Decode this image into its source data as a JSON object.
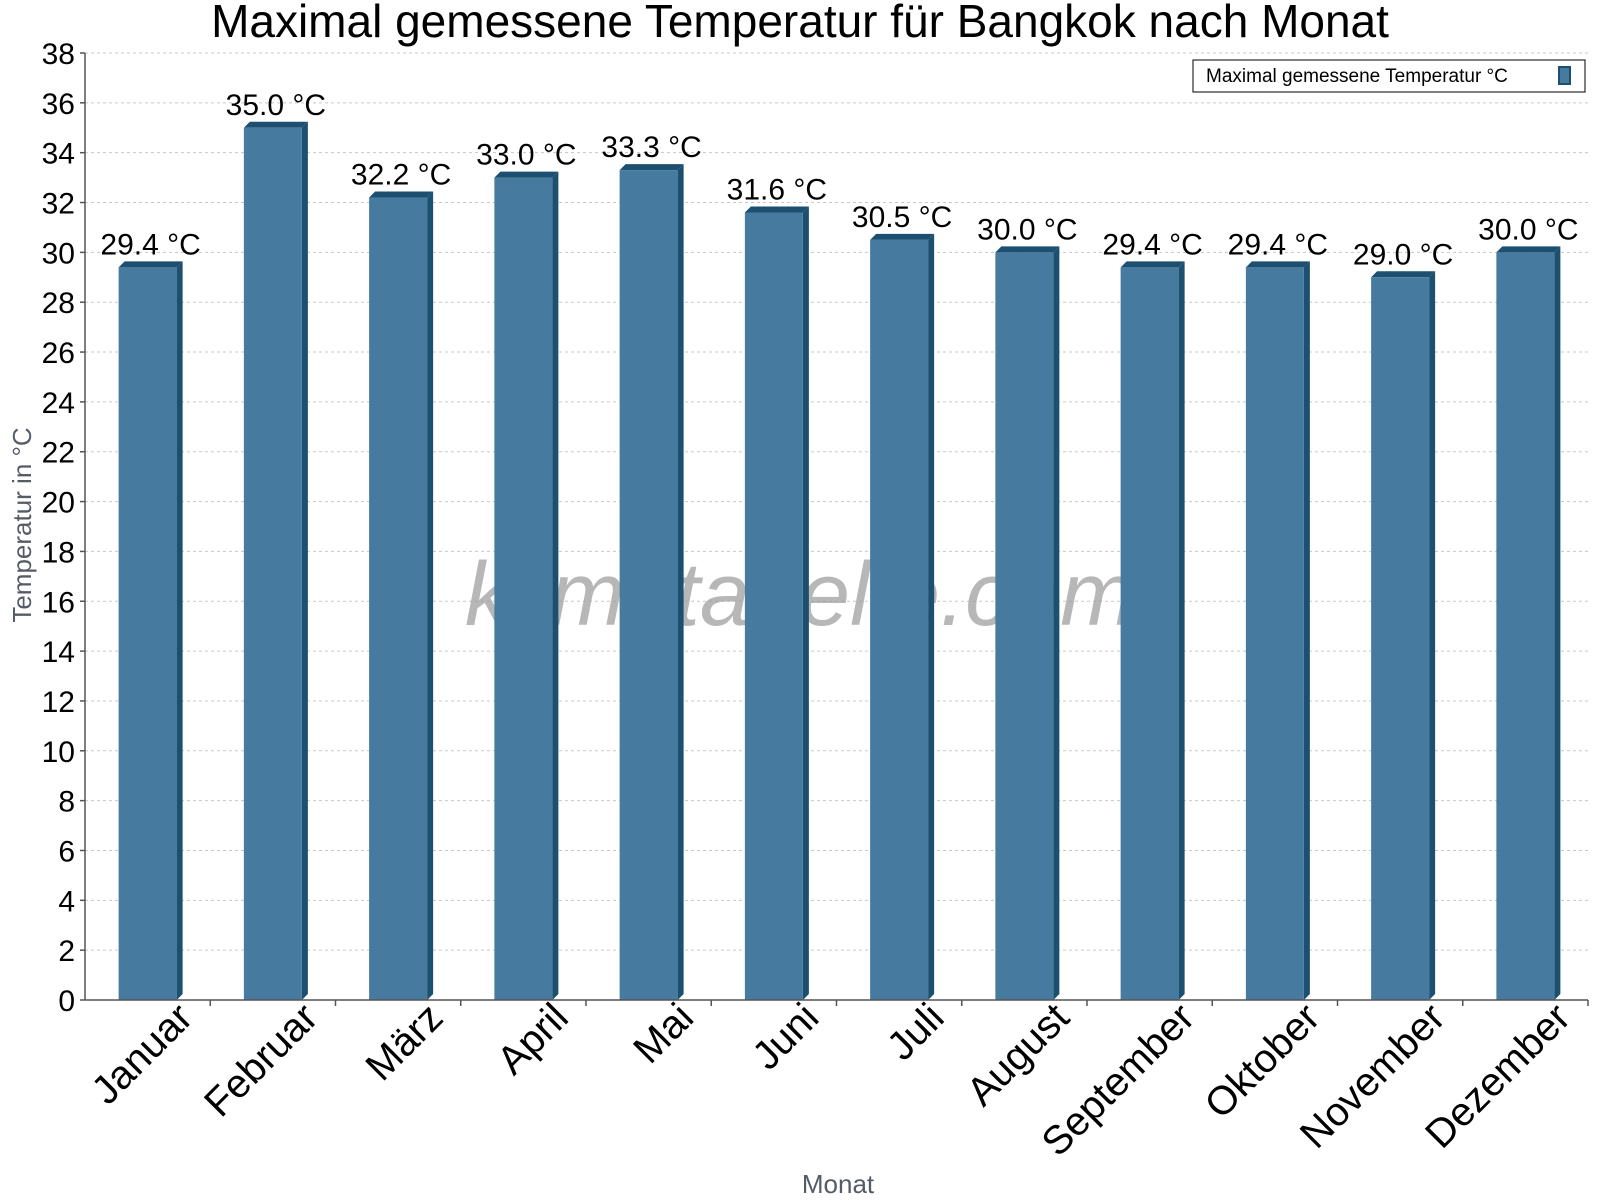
{
  "watermark": "klimatabelle.com",
  "colors": {
    "bar_front": "#467a9e",
    "bar_side": "#1c4f70",
    "bar_top": "#1c4f70"
  },
  "chart_data": {
    "type": "bar",
    "title": "Maximal gemessene Temperatur für Bangkok nach Monat",
    "xlabel": "Monat",
    "ylabel": "Temperatur in °C",
    "ylim": [
      0,
      38
    ],
    "yticks": [
      0,
      2,
      4,
      6,
      8,
      10,
      12,
      14,
      16,
      18,
      20,
      22,
      24,
      26,
      28,
      30,
      32,
      34,
      36,
      38
    ],
    "grid": true,
    "legend_position": "top-right",
    "categories": [
      "Januar",
      "Februar",
      "März",
      "April",
      "Mai",
      "Juni",
      "Juli",
      "August",
      "September",
      "Oktober",
      "November",
      "Dezember"
    ],
    "series": [
      {
        "name": "Maximal gemessene Temperatur °C",
        "values": [
          29.4,
          35.0,
          32.2,
          33.0,
          33.3,
          31.6,
          30.5,
          30.0,
          29.4,
          29.4,
          29.0,
          30.0
        ],
        "labels": [
          "29.4 °C",
          "35.0 °C",
          "32.2 °C",
          "33.0 °C",
          "33.3 °C",
          "31.6 °C",
          "30.5 °C",
          "30.0 °C",
          "29.4 °C",
          "29.4 °C",
          "29.0 °C",
          "30.0 °C"
        ]
      }
    ]
  }
}
